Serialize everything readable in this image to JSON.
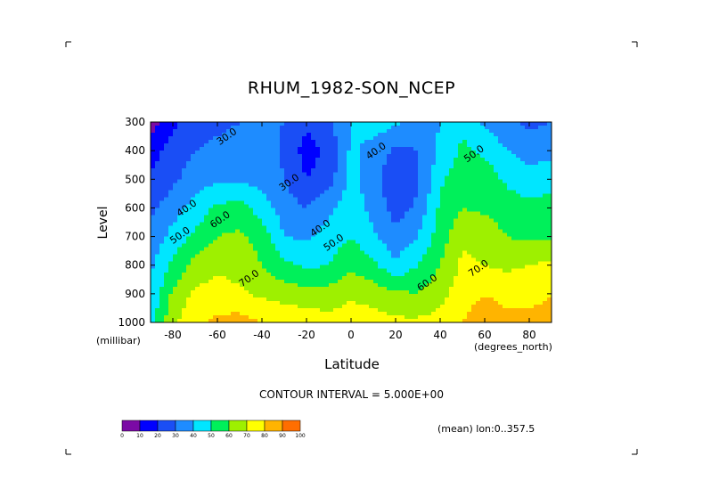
{
  "chart_data": {
    "type": "heatmap",
    "title": "RHUM_1982-SON_NCEP",
    "xlabel": "Latitude",
    "ylabel": "Level",
    "y_unit": "(millibar)",
    "x_unit": "(degrees_north)",
    "xlim": [
      -90,
      90
    ],
    "ylim": [
      1000,
      300
    ],
    "x_ticks": [
      -80,
      -60,
      -40,
      -20,
      0,
      20,
      40,
      60,
      80
    ],
    "y_ticks": [
      300,
      400,
      500,
      600,
      700,
      800,
      900,
      1000
    ],
    "contour_labels": [
      {
        "text": "30.0",
        "x": -55,
        "y": 360
      },
      {
        "text": "30.0",
        "x": -27,
        "y": 520
      },
      {
        "text": "40.0",
        "x": 12,
        "y": 410
      },
      {
        "text": "50.0",
        "x": 56,
        "y": 420
      },
      {
        "text": "40.0",
        "x": -73,
        "y": 610
      },
      {
        "text": "50.0",
        "x": -76,
        "y": 705
      },
      {
        "text": "60.0",
        "x": -58,
        "y": 650
      },
      {
        "text": "40.0",
        "x": -13,
        "y": 680
      },
      {
        "text": "50.0",
        "x": -7,
        "y": 730
      },
      {
        "text": "70.0",
        "x": -45,
        "y": 855
      },
      {
        "text": "60.0",
        "x": 35,
        "y": 870
      },
      {
        "text": "70.0",
        "x": 58,
        "y": 820
      }
    ],
    "levels": [
      300,
      400,
      500,
      600,
      700,
      800,
      900,
      1000
    ],
    "latitudes": [
      -90,
      -80,
      -70,
      -60,
      -50,
      -40,
      -30,
      -20,
      -10,
      0,
      10,
      20,
      30,
      40,
      50,
      60,
      70,
      80,
      90
    ],
    "values": [
      [
        5,
        18,
        25,
        28,
        30,
        32,
        30,
        22,
        28,
        40,
        46,
        42,
        35,
        40,
        48,
        38,
        32,
        28,
        30
      ],
      [
        15,
        25,
        30,
        32,
        33,
        35,
        28,
        16,
        22,
        42,
        36,
        28,
        30,
        42,
        52,
        48,
        40,
        35,
        38
      ],
      [
        22,
        28,
        35,
        38,
        38,
        37,
        30,
        20,
        25,
        44,
        34,
        22,
        28,
        48,
        56,
        56,
        48,
        45,
        45
      ],
      [
        28,
        35,
        44,
        52,
        54,
        45,
        35,
        30,
        38,
        46,
        36,
        26,
        32,
        52,
        60,
        58,
        55,
        52,
        55
      ],
      [
        32,
        44,
        52,
        60,
        62,
        56,
        40,
        38,
        44,
        50,
        42,
        32,
        40,
        55,
        68,
        66,
        60,
        58,
        58
      ],
      [
        38,
        52,
        64,
        68,
        66,
        60,
        52,
        48,
        50,
        58,
        52,
        42,
        50,
        60,
        72,
        70,
        68,
        70,
        72
      ],
      [
        42,
        62,
        72,
        74,
        72,
        68,
        66,
        64,
        64,
        68,
        66,
        62,
        60,
        66,
        76,
        80,
        76,
        78,
        80
      ],
      [
        45,
        68,
        78,
        82,
        84,
        80,
        78,
        76,
        74,
        76,
        74,
        72,
        72,
        74,
        80,
        86,
        84,
        82,
        82
      ]
    ],
    "colorbar": {
      "ticks": [
        0,
        10,
        20,
        30,
        40,
        50,
        60,
        70,
        80,
        90,
        100
      ],
      "colors": [
        "#7b0aa5",
        "#0000ff",
        "#1a4ef5",
        "#1e8cff",
        "#00e6ff",
        "#00f05a",
        "#9ef000",
        "#ffff00",
        "#ffb400",
        "#ff6e00",
        "#ff0000"
      ]
    }
  },
  "contour_interval": "CONTOUR INTERVAL = 5.000E+00",
  "mean_note": "(mean) lon:0..357.5"
}
